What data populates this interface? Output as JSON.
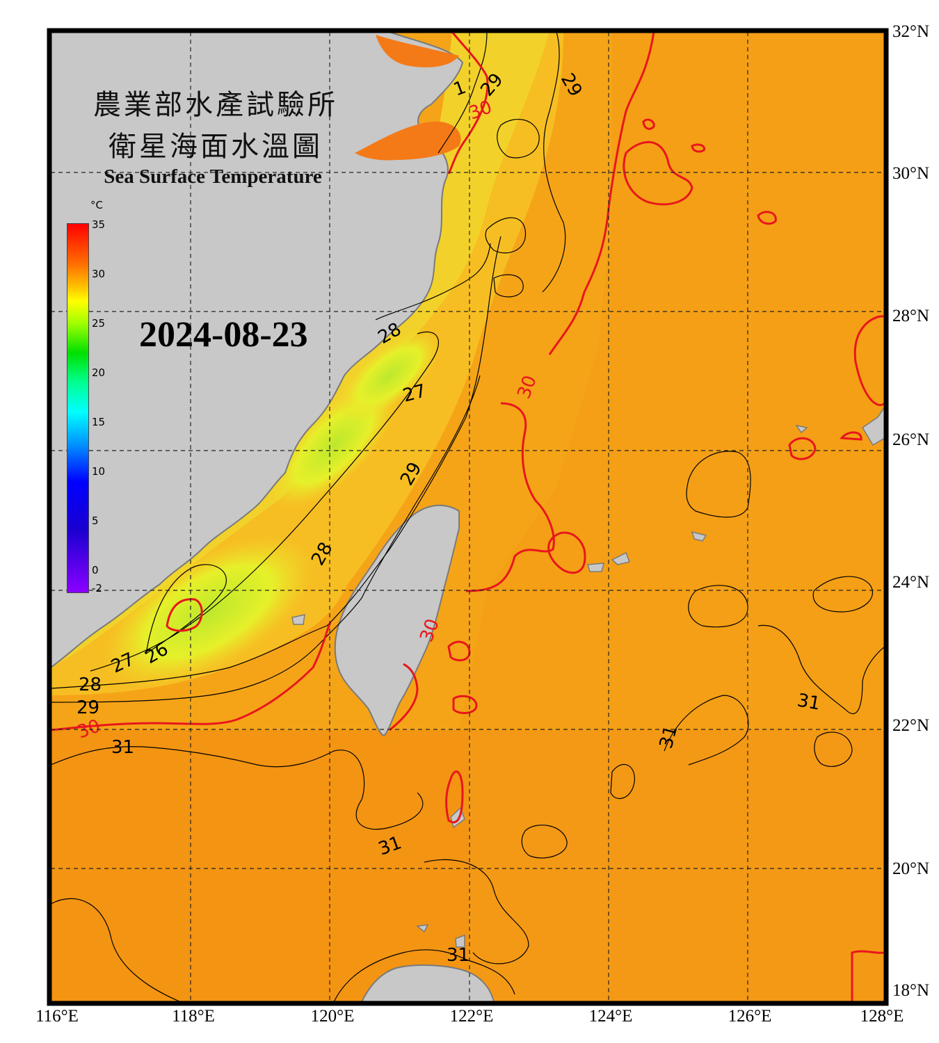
{
  "title_zh_line1": "農業部水產試驗所",
  "title_zh_line2": "衛星海面水溫圖",
  "title_en": "Sea Surface Temperature",
  "date": "2024-08-23",
  "colorbar": {
    "unit": "°C",
    "ticks": [
      "35",
      "30",
      "25",
      "20",
      "15",
      "10",
      "5",
      "0",
      "-2"
    ]
  },
  "lat_labels": [
    "32°N",
    "30°N",
    "28°N",
    "26°N",
    "24°N",
    "22°N",
    "20°N",
    "18°N"
  ],
  "lon_labels": [
    "116°E",
    "118°E",
    "120°E",
    "122°E",
    "124°E",
    "126°E",
    "128°E"
  ],
  "contour_labels": {
    "c27_west": "27",
    "c26": "26",
    "c28_west": "28",
    "c29_west": "29",
    "c30_west": "30",
    "c31_west": "31",
    "c28_mid": "28",
    "c27_mid": "27",
    "c28_north": "28",
    "c29_mid": "29",
    "c30_east": "30",
    "c30_taiwan": "30",
    "c29_north": "29",
    "c29_ne": "29",
    "c30_north": "30",
    "c1_north": "1",
    "c31_east": "31",
    "c31_center": "31",
    "c31_south": "31",
    "c31_bottom": "31"
  },
  "colors": {
    "land": "#c8c8c8",
    "coast": "#7a7a7a",
    "sea_warm": "#f6a117",
    "sea_hot": "#f39012",
    "sea_cool": "#d6f030",
    "contour_30": "#e8161c",
    "contour": "#000000"
  }
}
